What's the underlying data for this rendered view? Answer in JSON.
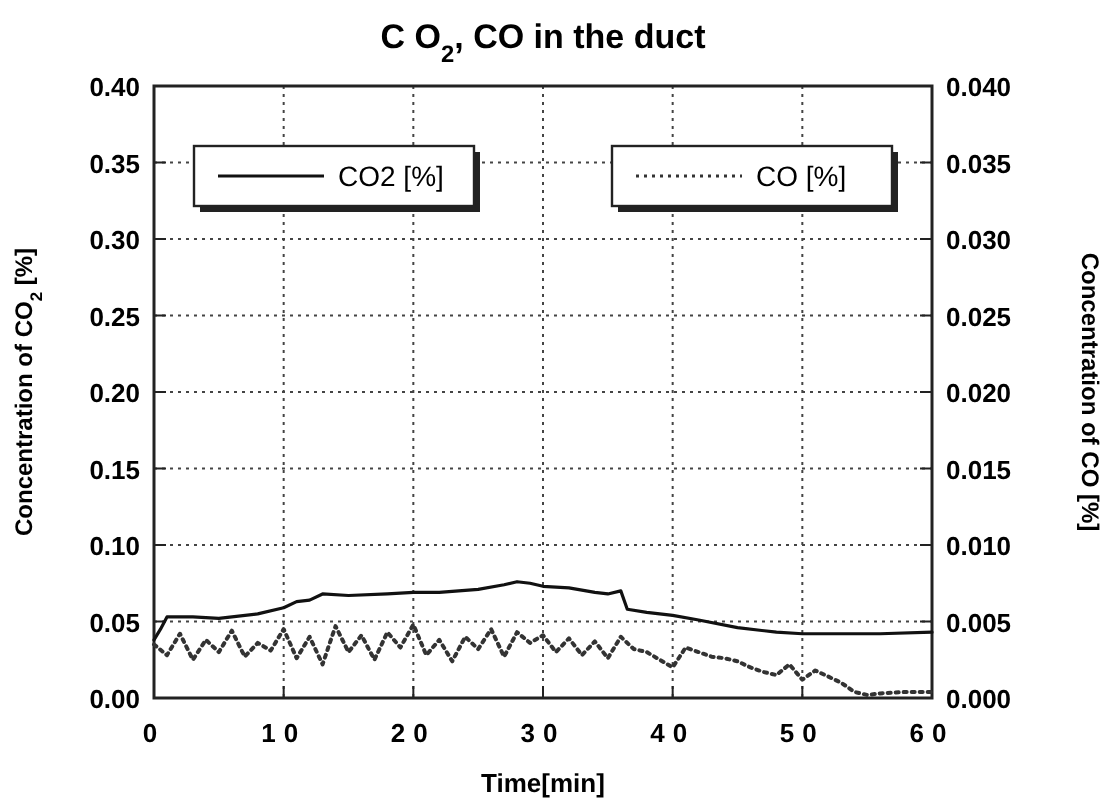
{
  "chart_data": {
    "type": "line",
    "title": "C O$_{2}$, CO in the duct",
    "xlabel": "Time[min]",
    "ylabel": "Concentration of CO$_{2}$ [%]",
    "y2label": "Concentration of CO [%]",
    "xlim": [
      0,
      60
    ],
    "xticks": [
      0,
      10,
      20,
      30,
      40,
      50,
      60
    ],
    "ylim": [
      0,
      0.4
    ],
    "yticks": [
      {
        "value": 0,
        "label": "0.00"
      },
      {
        "value": 0.05,
        "label": "0.05"
      },
      {
        "value": 0.1,
        "label": "0.10"
      },
      {
        "value": 0.15,
        "label": "0.15"
      },
      {
        "value": 0.2,
        "label": "0.20"
      },
      {
        "value": 0.25,
        "label": "0.25"
      },
      {
        "value": 0.3,
        "label": "0.30"
      },
      {
        "value": 0.35,
        "label": "0.35"
      },
      {
        "value": 0.4,
        "label": "0.40"
      }
    ],
    "y2lim": [
      0,
      0.04
    ],
    "y2ticks": [
      {
        "value": 0,
        "label": "0.000"
      },
      {
        "value": 0.005,
        "label": "0.005"
      },
      {
        "value": 0.01,
        "label": "0.010"
      },
      {
        "value": 0.015,
        "label": "0.015"
      },
      {
        "value": 0.02,
        "label": "0.020"
      },
      {
        "value": 0.025,
        "label": "0.025"
      },
      {
        "value": 0.03,
        "label": "0.030"
      },
      {
        "value": 0.035,
        "label": "0.035"
      },
      {
        "value": 0.04,
        "label": "0.040"
      }
    ],
    "grid": true,
    "legend": "top",
    "series": [
      {
        "name": "CO2 [%]",
        "color": "#111111",
        "line_style": "solid",
        "x": [
          0,
          0.5,
          1,
          3,
          5,
          8,
          10,
          11,
          12,
          13,
          15,
          18,
          20,
          22,
          25,
          27,
          28,
          29,
          30,
          32,
          34,
          35,
          36,
          36.5,
          38,
          40,
          42,
          45,
          48,
          50,
          53,
          56,
          60
        ],
        "values": [
          0.038,
          0.045,
          0.053,
          0.053,
          0.052,
          0.055,
          0.059,
          0.063,
          0.064,
          0.068,
          0.067,
          0.068,
          0.069,
          0.069,
          0.071,
          0.074,
          0.076,
          0.075,
          0.073,
          0.072,
          0.069,
          0.068,
          0.07,
          0.058,
          0.056,
          0.054,
          0.051,
          0.046,
          0.043,
          0.042,
          0.042,
          0.042,
          0.043
        ]
      },
      {
        "name": "CO [%]",
        "color": "#333333",
        "line_style": "dotted",
        "axis": "y2",
        "x": [
          0,
          1,
          2,
          3,
          4,
          5,
          6,
          7,
          8,
          9,
          10,
          11,
          12,
          13,
          14,
          15,
          16,
          17,
          18,
          19,
          20,
          21,
          22,
          23,
          24,
          25,
          26,
          27,
          28,
          29,
          30,
          31,
          32,
          33,
          34,
          35,
          36,
          37,
          38,
          39,
          40,
          41,
          42,
          43,
          44,
          45,
          46,
          47,
          48,
          49,
          50,
          51,
          52,
          53,
          54,
          55,
          56,
          58,
          60
        ],
        "values": [
          0.0035,
          0.0028,
          0.0042,
          0.0025,
          0.0038,
          0.003,
          0.0044,
          0.0027,
          0.0036,
          0.0031,
          0.0045,
          0.0026,
          0.004,
          0.0022,
          0.0047,
          0.003,
          0.0041,
          0.0025,
          0.0043,
          0.0033,
          0.0048,
          0.0028,
          0.0038,
          0.0024,
          0.004,
          0.0032,
          0.0045,
          0.0027,
          0.0043,
          0.0036,
          0.0041,
          0.003,
          0.0039,
          0.0028,
          0.0037,
          0.0026,
          0.004,
          0.0032,
          0.003,
          0.0025,
          0.002,
          0.0033,
          0.003,
          0.0027,
          0.0026,
          0.0024,
          0.002,
          0.0017,
          0.0015,
          0.0022,
          0.0012,
          0.0018,
          0.0014,
          0.001,
          0.0004,
          0.0002,
          0.0003,
          0.0004,
          0.0004
        ]
      }
    ]
  }
}
